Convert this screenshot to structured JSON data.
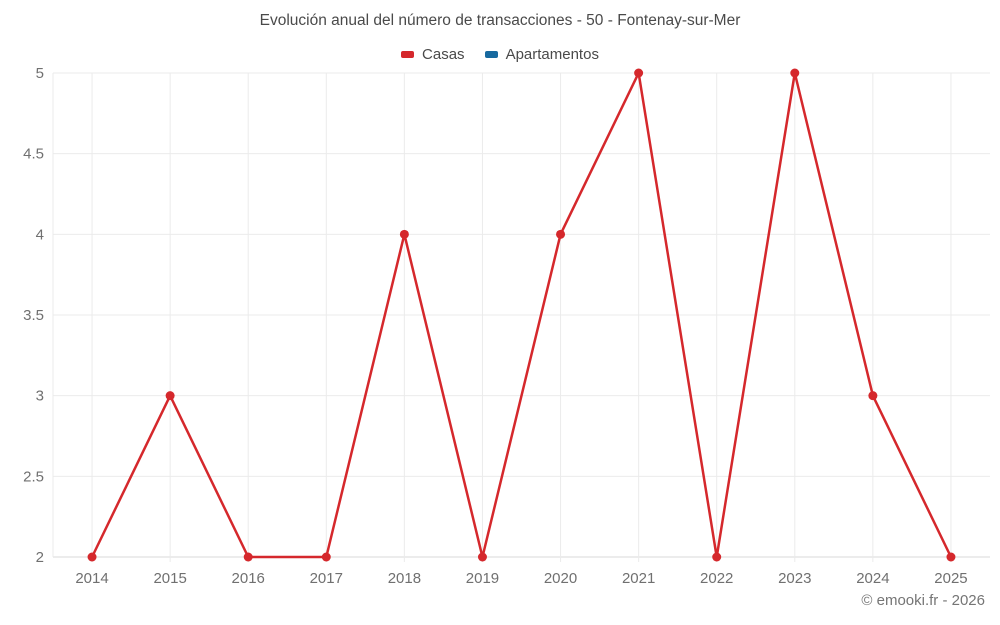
{
  "title": "Evolución anual del número de transacciones - 50 - Fontenay-sur-Mer",
  "footer": "© emooki.fr - 2026",
  "legend": {
    "items": [
      {
        "label": "Casas",
        "color": "#d5282c"
      },
      {
        "label": "Apartamentos",
        "color": "#17699f"
      }
    ]
  },
  "colors": {
    "casas_series": "#d5282c",
    "apartamentos_series": "#17699f",
    "grid_line": "#ebebeb",
    "axis_line": "#d8d8d8",
    "tick_label": "#707070",
    "title_text": "#4a4a4a",
    "footer_text": "#757575",
    "background": "#ffffff"
  },
  "chart_data": {
    "type": "line",
    "title": "Evolución anual del número de transacciones - 50 - Fontenay-sur-Mer",
    "categories": [
      "2014",
      "2015",
      "2016",
      "2017",
      "2018",
      "2019",
      "2020",
      "2021",
      "2022",
      "2023",
      "2024",
      "2025"
    ],
    "series": [
      {
        "name": "Casas",
        "color": "#d5282c",
        "values": [
          2,
          3,
          2,
          2,
          4,
          2,
          4,
          5,
          2,
          5,
          3,
          2
        ]
      },
      {
        "name": "Apartamentos",
        "color": "#17699f",
        "values": []
      }
    ],
    "xlabel": "",
    "ylabel": "",
    "ylim": [
      2,
      5
    ],
    "yticks": [
      2,
      2.5,
      3,
      3.5,
      4,
      4.5,
      5
    ],
    "grid": true,
    "legend_position": "top",
    "marker": "circle"
  }
}
